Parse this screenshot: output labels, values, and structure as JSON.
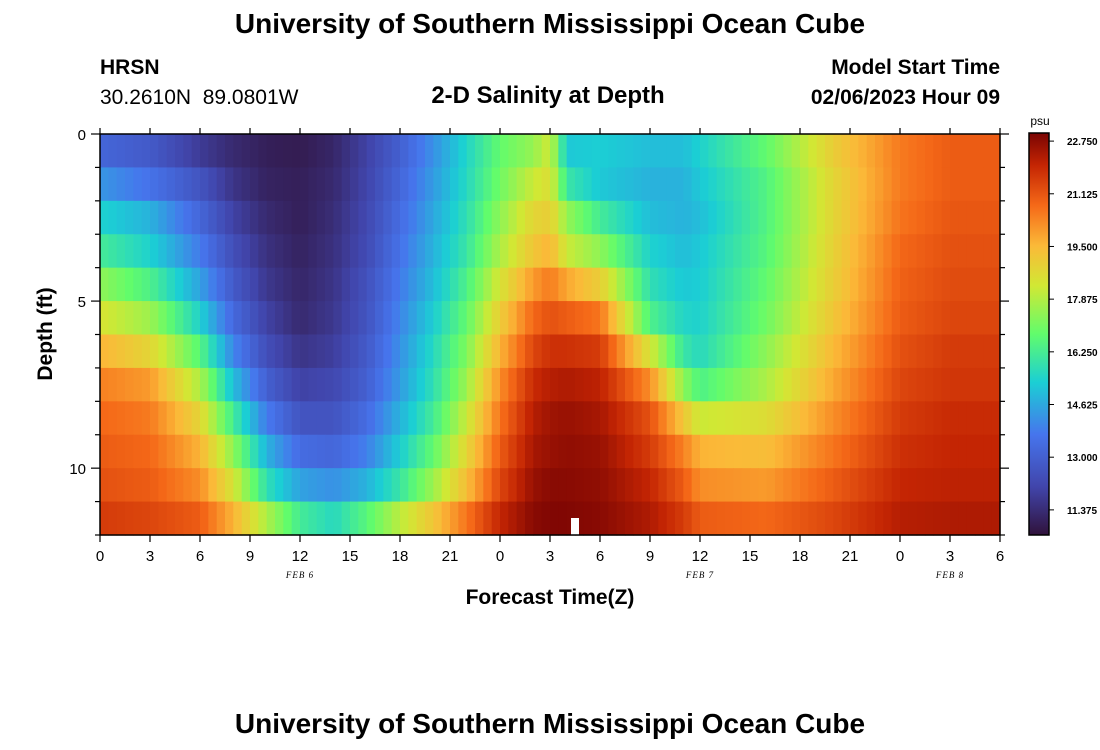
{
  "header": {
    "title_top": "University of Southern Mississippi Ocean Cube",
    "title_bottom": "University of Southern Mississippi Ocean Cube",
    "station": "HRSN",
    "coords": "30.2610N  89.0801W",
    "subtitle": "2-D Salinity at Depth",
    "model_label": "Model Start Time",
    "model_time": "02/06/2023 Hour 09"
  },
  "chart_data": {
    "type": "heatmap",
    "title": "2-D Salinity at Depth",
    "xlabel": "Forecast Time(Z)",
    "ylabel": "Depth (ft)",
    "x_hours": [
      0,
      54
    ],
    "x_tick_labels": [
      "0",
      "3",
      "6",
      "9",
      "12",
      "15",
      "18",
      "21",
      "0",
      "3",
      "6",
      "9",
      "12",
      "15",
      "18",
      "21",
      "0",
      "3",
      "6"
    ],
    "date_labels": [
      {
        "hour": 12,
        "label": "FEB 6"
      },
      {
        "hour": 36,
        "label": "FEB 7"
      },
      {
        "hour": 51,
        "label": "FEB 8"
      }
    ],
    "y_range": [
      0,
      12
    ],
    "y_tick_labels": [
      "0",
      "5",
      "10"
    ],
    "y_tick_values": [
      0,
      5,
      10
    ],
    "colorbar": {
      "unit": "psu",
      "min": 10.6,
      "max": 23.0,
      "tick_labels": [
        "22.750",
        "21.125",
        "19.500",
        "17.875",
        "16.250",
        "14.625",
        "13.000",
        "11.375"
      ],
      "tick_values": [
        22.75,
        21.125,
        19.5,
        17.875,
        16.25,
        14.625,
        13.0,
        11.375
      ]
    },
    "depth_levels_ft": [
      0.5,
      1.5,
      2.5,
      3.5,
      4.5,
      5.5,
      6.5,
      7.5,
      8.5,
      9.5,
      10.5,
      11.5
    ],
    "profile_hours": [
      0,
      3,
      6,
      8,
      10,
      12,
      14,
      16,
      18,
      20,
      22,
      24,
      26,
      27,
      28,
      30,
      33,
      35,
      36,
      40,
      44,
      48,
      51,
      54
    ],
    "salinity_psu": [
      [
        13.2,
        12.8,
        11.8,
        11.3,
        11.0,
        10.9,
        11.2,
        12.0,
        13.0,
        14.2,
        15.5,
        16.8,
        17.5,
        18.3,
        15.2,
        15.3,
        15.0,
        15.0,
        15.4,
        16.8,
        19.0,
        20.5,
        21.0,
        21.0
      ],
      [
        14.3,
        13.6,
        12.6,
        11.6,
        11.1,
        11.0,
        11.3,
        12.1,
        13.2,
        14.4,
        15.6,
        17.0,
        18.2,
        18.6,
        16.0,
        15.2,
        14.8,
        14.8,
        15.2,
        16.5,
        18.8,
        20.5,
        21.0,
        21.0
      ],
      [
        15.4,
        14.8,
        13.2,
        12.0,
        11.3,
        11.0,
        11.4,
        12.2,
        13.4,
        14.6,
        15.8,
        17.4,
        18.8,
        19.0,
        17.5,
        16.2,
        15.0,
        14.8,
        15.0,
        16.5,
        18.8,
        20.6,
        21.1,
        21.1
      ],
      [
        16.2,
        15.4,
        13.8,
        12.4,
        11.5,
        11.1,
        11.5,
        12.3,
        13.6,
        14.8,
        16.0,
        17.8,
        19.2,
        19.6,
        18.2,
        17.4,
        15.4,
        15.0,
        15.2,
        16.6,
        18.9,
        20.8,
        21.2,
        21.2
      ],
      [
        17.4,
        16.4,
        14.5,
        12.8,
        11.7,
        11.2,
        11.6,
        12.5,
        13.8,
        15.0,
        16.4,
        18.4,
        20.0,
        20.5,
        19.8,
        19.0,
        15.8,
        15.2,
        15.3,
        16.8,
        19.0,
        20.9,
        21.3,
        21.3
      ],
      [
        18.4,
        17.6,
        15.4,
        13.3,
        12.0,
        11.3,
        11.7,
        12.6,
        14.0,
        15.3,
        16.8,
        19.0,
        20.8,
        21.2,
        21.0,
        20.6,
        16.4,
        15.5,
        15.4,
        17.0,
        19.2,
        21.0,
        21.4,
        21.4
      ],
      [
        19.6,
        18.8,
        16.6,
        14.0,
        12.4,
        11.6,
        11.9,
        12.8,
        14.2,
        15.6,
        17.2,
        19.6,
        21.4,
        21.8,
        21.8,
        21.6,
        18.4,
        16.0,
        15.6,
        17.4,
        19.5,
        21.2,
        21.6,
        21.6
      ],
      [
        20.4,
        20.0,
        17.8,
        15.0,
        13.0,
        12.0,
        12.2,
        13.0,
        14.4,
        15.8,
        17.6,
        20.2,
        21.9,
        22.2,
        22.3,
        22.1,
        20.2,
        17.4,
        16.4,
        17.8,
        19.8,
        21.4,
        21.7,
        21.7
      ],
      [
        20.8,
        20.5,
        18.8,
        16.2,
        13.8,
        12.6,
        12.6,
        13.4,
        14.8,
        16.2,
        18.2,
        20.6,
        22.2,
        22.5,
        22.6,
        22.4,
        21.2,
        19.2,
        18.2,
        18.6,
        20.2,
        21.6,
        21.9,
        21.9
      ],
      [
        21.0,
        20.8,
        19.6,
        17.4,
        14.8,
        13.4,
        13.2,
        13.9,
        15.3,
        16.8,
        18.8,
        21.0,
        22.4,
        22.6,
        22.7,
        22.6,
        21.6,
        20.4,
        19.6,
        19.4,
        20.6,
        21.8,
        22.0,
        22.0
      ],
      [
        21.2,
        21.0,
        20.2,
        18.4,
        15.8,
        14.5,
        14.2,
        14.8,
        16.0,
        17.6,
        19.4,
        21.4,
        22.6,
        22.8,
        22.8,
        22.7,
        22.0,
        21.0,
        20.2,
        20.0,
        21.0,
        22.0,
        22.1,
        22.1
      ],
      [
        21.6,
        21.4,
        21.0,
        19.6,
        17.8,
        16.2,
        15.6,
        16.6,
        18.0,
        19.2,
        20.6,
        22.0,
        22.8,
        22.9,
        22.9,
        22.8,
        22.3,
        21.6,
        21.0,
        20.8,
        21.4,
        22.2,
        22.3,
        22.3
      ]
    ]
  }
}
